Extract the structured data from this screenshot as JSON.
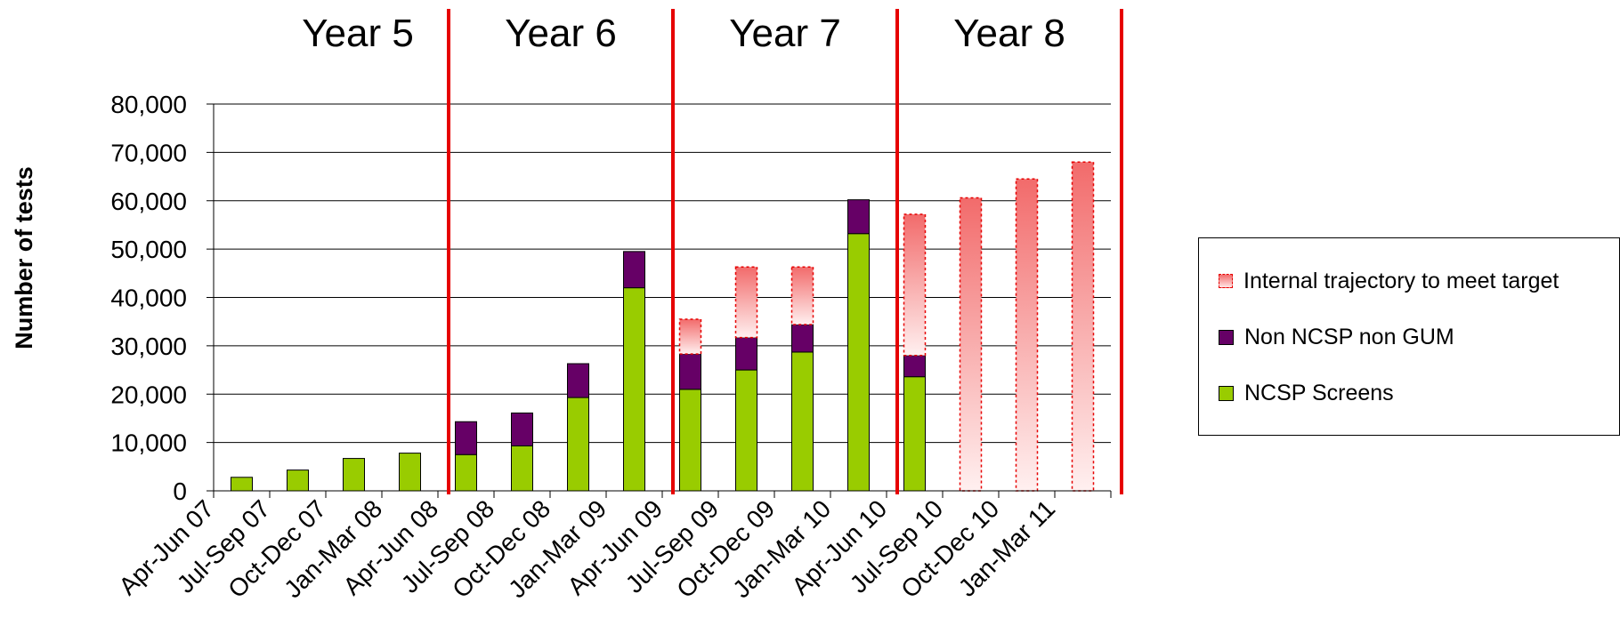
{
  "chart_data": {
    "type": "bar",
    "stacked": true,
    "ylabel": "Number of tests",
    "ylim": [
      0,
      80000
    ],
    "yticks": [
      "0",
      "10,000",
      "20,000",
      "30,000",
      "40,000",
      "50,000",
      "60,000",
      "70,000",
      "80,000"
    ],
    "categories": [
      "Apr-Jun 07",
      "Jul-Sep 07",
      "Oct-Dec 07",
      "Jan-Mar 08",
      "Apr-Jun 08",
      "Jul-Sep 08",
      "Oct-Dec 08",
      "Jan-Mar 09",
      "Apr-Jun 09",
      "Jul-Sep 09",
      "Oct-Dec 09",
      "Jan-Mar 10",
      "Apr-Jun 10",
      "Jul-Sep 10",
      "Oct-Dec 10",
      "Jan-Mar 11"
    ],
    "year_bands": [
      {
        "label": "Year 5",
        "start": 0,
        "end": 4
      },
      {
        "label": "Year 6",
        "start": 4,
        "end": 8
      },
      {
        "label": "Year 7",
        "start": 8,
        "end": 12
      },
      {
        "label": "Year 8",
        "start": 12,
        "end": 16
      }
    ],
    "series": [
      {
        "name": "NCSP Screens",
        "color": "#99cc00",
        "values": [
          2800,
          4300,
          6700,
          7800,
          7500,
          9300,
          19300,
          42000,
          21000,
          25000,
          28700,
          53200,
          23600,
          null,
          null,
          null
        ]
      },
      {
        "name": "Non NCSP non GUM",
        "color": "#660066",
        "values": [
          0,
          0,
          0,
          0,
          6800,
          6800,
          7000,
          7500,
          7300,
          6700,
          5700,
          7000,
          4400,
          null,
          null,
          null
        ]
      },
      {
        "name": "Internal trajectory to meet target",
        "color": "#f26b6b",
        "totals": [
          null,
          null,
          null,
          null,
          null,
          null,
          null,
          null,
          35500,
          46300,
          46300,
          null,
          57200,
          60600,
          64500,
          68000
        ]
      }
    ],
    "legend_position": "right",
    "grid": true,
    "year_divider_color": "#e60000"
  }
}
